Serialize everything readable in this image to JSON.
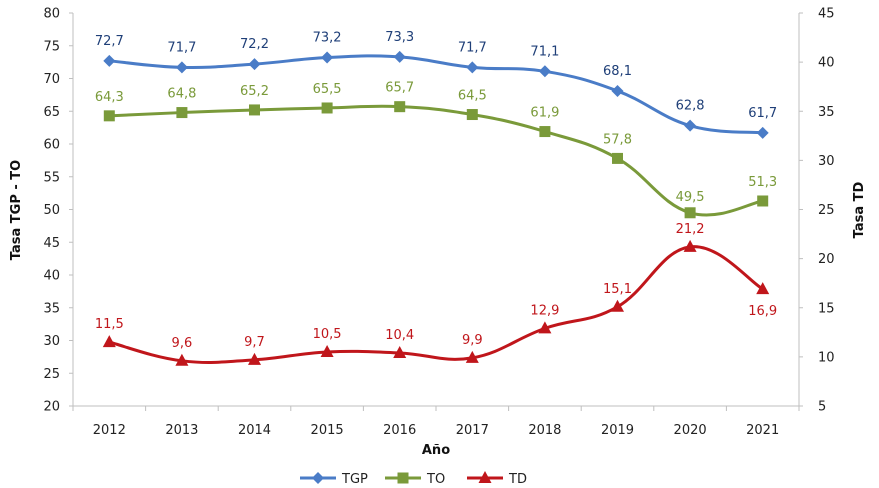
{
  "chart_data": {
    "type": "line",
    "categories": [
      "2012",
      "2013",
      "2014",
      "2015",
      "2016",
      "2017",
      "2018",
      "2019",
      "2020",
      "2021"
    ],
    "xlabel": "Año",
    "ylabel_left": "Tasa TGP - TO",
    "ylabel_right": "Tasa TD",
    "ylim_left": [
      20,
      80
    ],
    "ylim_right": [
      5,
      45
    ],
    "yticks_left": [
      "20",
      "25",
      "30",
      "35",
      "40",
      "45",
      "50",
      "55",
      "60",
      "65",
      "70",
      "75",
      "80"
    ],
    "yticks_right": [
      "5",
      "10",
      "15",
      "20",
      "25",
      "30",
      "35",
      "40",
      "45"
    ],
    "legend_position": "bottom",
    "series": [
      {
        "name": "TGP",
        "axis": "left",
        "color": "#4a7cc7",
        "marker": "diamond",
        "values": [
          72.7,
          71.7,
          72.2,
          73.2,
          73.3,
          71.7,
          71.1,
          68.1,
          62.8,
          61.7
        ],
        "labels": [
          "72,7",
          "71,7",
          "72,2",
          "73,2",
          "73,3",
          "71,7",
          "71,1",
          "68,1",
          "62,8",
          "61,7"
        ]
      },
      {
        "name": "TO",
        "axis": "left",
        "color": "#7a9a3a",
        "marker": "square",
        "values": [
          64.3,
          64.8,
          65.2,
          65.5,
          65.7,
          64.5,
          61.9,
          57.8,
          49.5,
          51.3
        ],
        "labels": [
          "64,3",
          "64,8",
          "65,2",
          "65,5",
          "65,7",
          "64,5",
          "61,9",
          "57,8",
          "49,5",
          "51,3"
        ]
      },
      {
        "name": "TD",
        "axis": "right",
        "color": "#c0161b",
        "marker": "triangle",
        "values": [
          11.5,
          9.6,
          9.7,
          10.5,
          10.4,
          9.9,
          12.9,
          15.1,
          21.2,
          16.9
        ],
        "labels": [
          "11,5",
          "9,6",
          "9,7",
          "10,5",
          "10,4",
          "9,9",
          "12,9",
          "15,1",
          "21,2",
          "16,9"
        ]
      }
    ]
  }
}
